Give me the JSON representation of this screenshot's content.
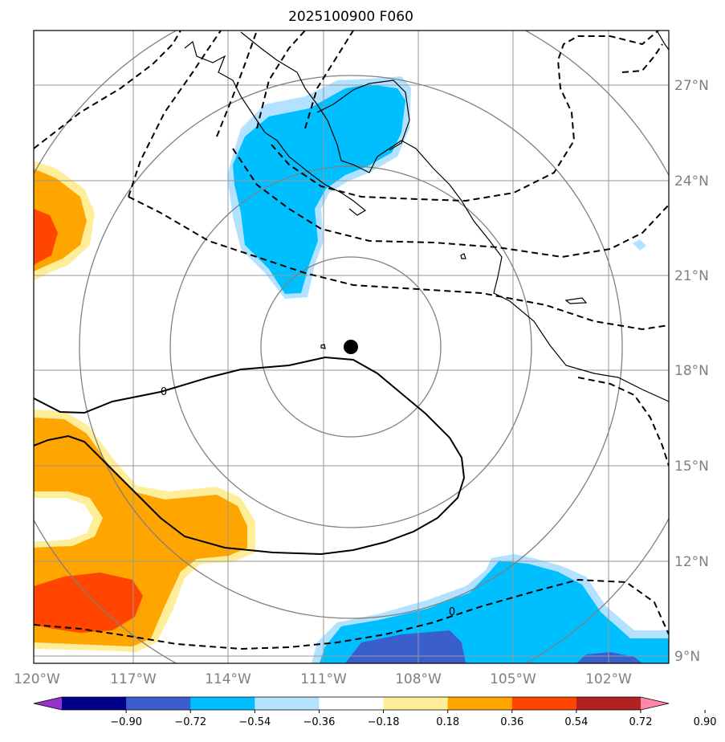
{
  "title": "2025100900 F060",
  "lat_labels": [
    "27°N",
    "24°N",
    "21°N",
    "18°N",
    "15°N",
    "12°N",
    "9°N"
  ],
  "lon_labels": [
    "120°W",
    "117°W",
    "114°W",
    "111°W",
    "108°W",
    "105°W",
    "102°W"
  ],
  "contour_labels": [
    "0",
    "0",
    "0"
  ],
  "colorbar": {
    "ticks": [
      "−0.90",
      "−0.72",
      "−0.54",
      "−0.36",
      "−0.18",
      "0.18",
      "0.36",
      "0.54",
      "0.72",
      "0.90"
    ],
    "colors": [
      "#9932cc",
      "#00008b",
      "#3a5fcd",
      "#00bfff",
      "#b2e2ff",
      "#ffffff",
      "#ffee99",
      "#ffa500",
      "#ff4500",
      "#b22222",
      "#ff88aa"
    ]
  },
  "colors": {
    "grid": "#999999",
    "rings": "#808080",
    "coast": "#000000",
    "text_axis": "#7f7f7f"
  }
}
